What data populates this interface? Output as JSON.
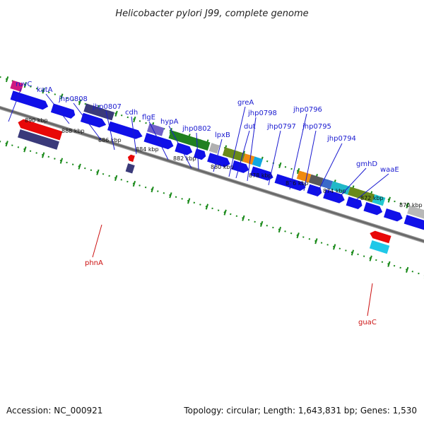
{
  "title": "Helicobacter pylori J99, complete genome",
  "footer": {
    "accession": "Accession: NC_000921",
    "topology": "Topology: circular; Length: 1,643,831 bp; Genes: 1,530"
  },
  "colors": {
    "forward_label": "#1a1ad0",
    "reverse_label": "#cc1111",
    "tick": "#1a8a1a",
    "backbone": "#7a7a7a"
  },
  "kbp_labels": [
    "890 kbp",
    "888 kbp",
    "886 kbp",
    "884 kbp",
    "882 kbp",
    "880 kbp",
    "878 kbp",
    "876 kbp",
    "874 kbp",
    "872 kbp",
    "870 kbp"
  ],
  "forward_gene_labels": [
    "ruvC",
    "katA",
    "jhp0808",
    "jhp0807",
    "cdh",
    "flgE",
    "hypA",
    "jhp0802",
    "lpxB",
    "greA",
    "dut",
    "jhp0798",
    "jhp0797",
    "jhp0796",
    "jhp0795",
    "jhp0794",
    "gmhD",
    "waaE"
  ],
  "reverse_gene_labels": [
    "phnA",
    "guaC"
  ]
}
